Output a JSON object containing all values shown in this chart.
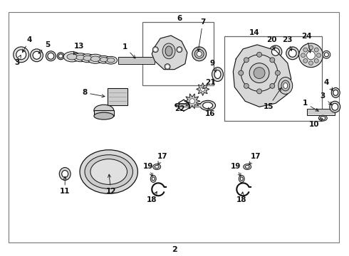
{
  "bg": "#ffffff",
  "fg": "#111111",
  "gray1": "#cccccc",
  "gray2": "#888888",
  "gray3": "#444444",
  "fig_w": 4.9,
  "fig_h": 3.6,
  "dpi": 100
}
